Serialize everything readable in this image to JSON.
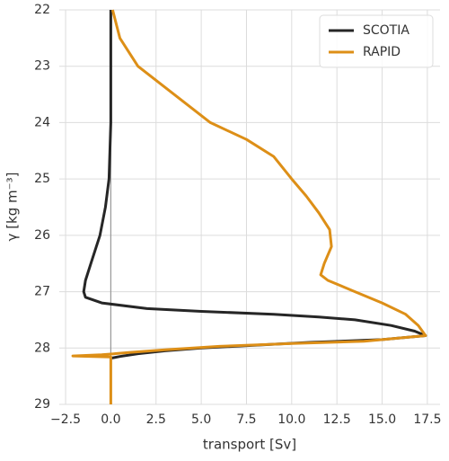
{
  "chart_data": {
    "type": "line",
    "xlabel": "transport [Sv]",
    "ylabel": "γ [kg m⁻³]",
    "xlim": [
      -2.85,
      18.2
    ],
    "ylim": [
      22,
      29
    ],
    "y_inverted": true,
    "xticks": [
      {
        "value": -2.5,
        "label": "−2.5"
      },
      {
        "value": 0,
        "label": "0.0"
      },
      {
        "value": 2.5,
        "label": "2.5"
      },
      {
        "value": 5,
        "label": "5.0"
      },
      {
        "value": 7.5,
        "label": "7.5"
      },
      {
        "value": 10,
        "label": "10.0"
      },
      {
        "value": 12.5,
        "label": "12.5"
      },
      {
        "value": 15,
        "label": "15.0"
      },
      {
        "value": 17.5,
        "label": "17.5"
      }
    ],
    "yticks": [
      22,
      23,
      24,
      25,
      26,
      27,
      28,
      29
    ],
    "grid": true,
    "vlines": [
      0
    ],
    "legend": "upper right",
    "series": [
      {
        "name": "SCOTIA",
        "color": "#262626",
        "x": [
          0,
          0,
          0,
          -0.1,
          -0.3,
          -0.6,
          -1.1,
          -1.4,
          -1.5,
          -1.4,
          -0.5,
          2,
          5,
          9,
          11.5,
          13.5,
          15.5,
          16.8,
          17.4,
          15,
          11,
          8,
          5,
          3,
          1.5,
          0.5,
          0
        ],
        "y": [
          22,
          23,
          24,
          25,
          25.5,
          26,
          26.5,
          26.8,
          27.0,
          27.1,
          27.2,
          27.3,
          27.35,
          27.4,
          27.45,
          27.5,
          27.6,
          27.7,
          27.78,
          27.85,
          27.9,
          27.95,
          28.0,
          28.05,
          28.1,
          28.15,
          28.18
        ]
      },
      {
        "name": "RAPID",
        "color": "#dd8f17",
        "x": [
          0.1,
          0.5,
          1.5,
          3.5,
          5.5,
          7.5,
          9,
          10,
          10.8,
          11.5,
          12.1,
          12.2,
          11.8,
          11.6,
          12,
          13.5,
          15,
          16.3,
          17,
          17.4,
          14,
          10,
          6,
          3,
          1,
          -0.5,
          -2.1,
          0,
          0,
          0
        ],
        "y": [
          22,
          22.5,
          23,
          23.5,
          24,
          24.3,
          24.6,
          25,
          25.3,
          25.6,
          25.9,
          26.2,
          26.5,
          26.7,
          26.8,
          27.0,
          27.2,
          27.4,
          27.6,
          27.78,
          27.88,
          27.92,
          27.97,
          28.03,
          28.08,
          28.12,
          28.14,
          28.16,
          28.5,
          29
        ]
      }
    ]
  }
}
